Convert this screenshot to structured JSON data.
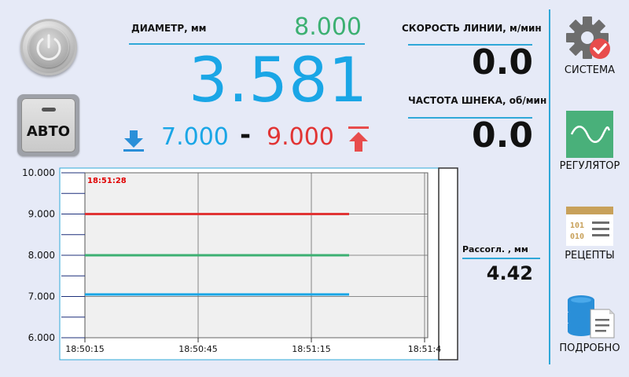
{
  "left": {
    "auto_label": "АВТО"
  },
  "diameter": {
    "label": "ДИАМЕТР, мм",
    "setpoint": "8.000",
    "value": "3.581",
    "tolerance_low": "7.000",
    "separator": "-",
    "tolerance_high": "9.000"
  },
  "speed": {
    "label": "СКОРОСТЬ ЛИНИИ, м/мин",
    "value": "0.0"
  },
  "screw": {
    "label": "ЧАСТОТА ШНЕКА, об/мин",
    "value": "0.0"
  },
  "mismatch": {
    "label": "Рассогл. , мм",
    "value": "4.42"
  },
  "sidebar": {
    "items": [
      {
        "label": "СИСТЕМА",
        "icon": "gear-check-icon"
      },
      {
        "label": "РЕГУЛЯТОР",
        "icon": "sine-wave-icon"
      },
      {
        "label": "РЕЦЕПТЫ",
        "icon": "recipe-book-icon"
      },
      {
        "label": "ПОДРОБНО",
        "icon": "database-document-icon"
      }
    ]
  },
  "colors": {
    "value_blue": "#1aa6e6",
    "setpoint_green": "#3cb072",
    "limit_red": "#e13434",
    "divider_blue": "#2fa8d8"
  },
  "chart_data": {
    "type": "line",
    "time_label": "18:51:28",
    "x_ticks": [
      "18:50:15",
      "18:50:45",
      "18:51:15",
      "18:51:4"
    ],
    "y_ticks": [
      "10.000",
      "9.000",
      "8.000",
      "7.000",
      "6.000"
    ],
    "ylim": [
      6,
      10
    ],
    "grid": true,
    "series": [
      {
        "color": "#e13434",
        "x": [
          "18:50:15",
          "18:51:25"
        ],
        "values": [
          9.0,
          9.0
        ]
      },
      {
        "color": "#3cb072",
        "x": [
          "18:50:15",
          "18:51:25"
        ],
        "values": [
          8.0,
          8.0
        ]
      },
      {
        "color": "#1aa6e6",
        "x": [
          "18:50:15",
          "18:51:25"
        ],
        "values": [
          7.05,
          7.05
        ]
      }
    ]
  }
}
